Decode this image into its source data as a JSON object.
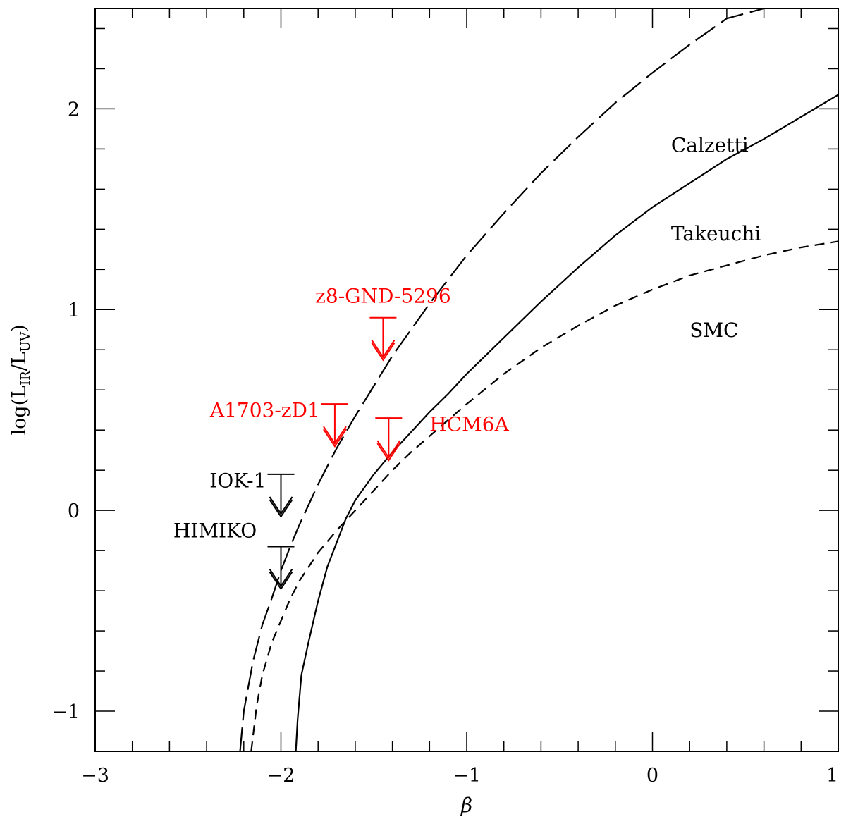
{
  "chart_data": {
    "type": "line",
    "title": "",
    "xlabel": "β",
    "ylabel": {
      "prefix": "log(L",
      "sub1": "IR",
      "mid": "/L",
      "sub2": "UV",
      "suffix": ")"
    },
    "xlim": [
      -3,
      1
    ],
    "ylim": [
      -1.2,
      2.5
    ],
    "grid": false,
    "x_major_ticks": [
      -3,
      -2,
      -1,
      0,
      1
    ],
    "x_minor_step": 0.2,
    "y_major_ticks": [
      -1,
      0,
      1,
      2
    ],
    "y_minor_step": 0.2,
    "tick_labels": {
      "x": [
        "−3",
        "−2",
        "−1",
        "0",
        "1"
      ],
      "y": [
        "−1",
        "0",
        "1",
        "2"
      ]
    },
    "series": [
      {
        "name": "Calzetti",
        "style": "long-dash",
        "color": "#000000",
        "x": [
          -2.22,
          -2.2,
          -2.17,
          -2.15,
          -2.1,
          -2.05,
          -2.0,
          -1.95,
          -1.9,
          -1.8,
          -1.7,
          -1.6,
          -1.5,
          -1.4,
          -1.3,
          -1.2,
          -1.1,
          -1.0,
          -0.8,
          -0.6,
          -0.4,
          -0.2,
          0.0,
          0.2,
          0.4,
          0.6
        ],
        "y": [
          -1.2,
          -1.0,
          -0.85,
          -0.75,
          -0.57,
          -0.44,
          -0.3,
          -0.18,
          -0.07,
          0.13,
          0.31,
          0.47,
          0.62,
          0.77,
          0.9,
          1.03,
          1.15,
          1.27,
          1.48,
          1.68,
          1.86,
          2.03,
          2.18,
          2.32,
          2.45,
          2.5
        ]
      },
      {
        "name": "Takeuchi",
        "style": "solid",
        "color": "#000000",
        "x": [
          -1.92,
          -1.91,
          -1.89,
          -1.85,
          -1.8,
          -1.75,
          -1.7,
          -1.65,
          -1.6,
          -1.5,
          -1.4,
          -1.3,
          -1.2,
          -1.1,
          -1.0,
          -0.8,
          -0.6,
          -0.4,
          -0.2,
          0.0,
          0.2,
          0.4,
          0.6,
          0.8,
          1.0
        ],
        "y": [
          -1.2,
          -1.04,
          -0.82,
          -0.65,
          -0.45,
          -0.28,
          -0.16,
          -0.04,
          0.05,
          0.18,
          0.29,
          0.39,
          0.49,
          0.58,
          0.68,
          0.86,
          1.04,
          1.21,
          1.37,
          1.51,
          1.63,
          1.75,
          1.85,
          1.96,
          2.07
        ]
      },
      {
        "name": "SMC",
        "style": "short-dash",
        "color": "#000000",
        "x": [
          -2.16,
          -2.13,
          -2.1,
          -2.05,
          -2.0,
          -1.95,
          -1.9,
          -1.8,
          -1.7,
          -1.6,
          -1.5,
          -1.4,
          -1.3,
          -1.2,
          -1.1,
          -1.0,
          -0.8,
          -0.6,
          -0.4,
          -0.2,
          0.0,
          0.2,
          0.4,
          0.6,
          0.8,
          1.0
        ],
        "y": [
          -1.2,
          -0.97,
          -0.82,
          -0.66,
          -0.55,
          -0.44,
          -0.35,
          -0.21,
          -0.1,
          0.0,
          0.1,
          0.2,
          0.29,
          0.37,
          0.45,
          0.53,
          0.68,
          0.81,
          0.92,
          1.02,
          1.1,
          1.17,
          1.22,
          1.27,
          1.31,
          1.34
        ]
      }
    ],
    "curve_labels": [
      {
        "text": "Calzetti",
        "x": 0.1,
        "y": 1.82,
        "color": "#000000"
      },
      {
        "text": "Takeuchi",
        "x": 0.1,
        "y": 1.38,
        "color": "#000000"
      },
      {
        "text": "SMC",
        "x": 0.2,
        "y": 0.9,
        "color": "#000000"
      }
    ],
    "upper_limits": [
      {
        "name": "z8-GND-5296",
        "x": -1.45,
        "y": 0.96,
        "color": "#ff0000",
        "label_x": -1.45,
        "label_y": 1.07,
        "label_anchor": "middle"
      },
      {
        "name": "A1703-zD1",
        "x": -1.71,
        "y": 0.53,
        "color": "#ff0000",
        "label_x": -1.79,
        "label_y": 0.5,
        "label_anchor": "end"
      },
      {
        "name": "HCM6A",
        "x": -1.42,
        "y": 0.46,
        "color": "#ff0000",
        "label_x": -1.2,
        "label_y": 0.43,
        "label_anchor": "start"
      },
      {
        "name": "IOK-1",
        "x": -2.0,
        "y": 0.18,
        "color": "#000000",
        "label_x": -2.08,
        "label_y": 0.15,
        "label_anchor": "end"
      },
      {
        "name": "HIMIKO",
        "x": -2.0,
        "y": -0.18,
        "color": "#000000",
        "label_x": -2.13,
        "label_y": -0.1,
        "label_anchor": "end"
      }
    ]
  }
}
